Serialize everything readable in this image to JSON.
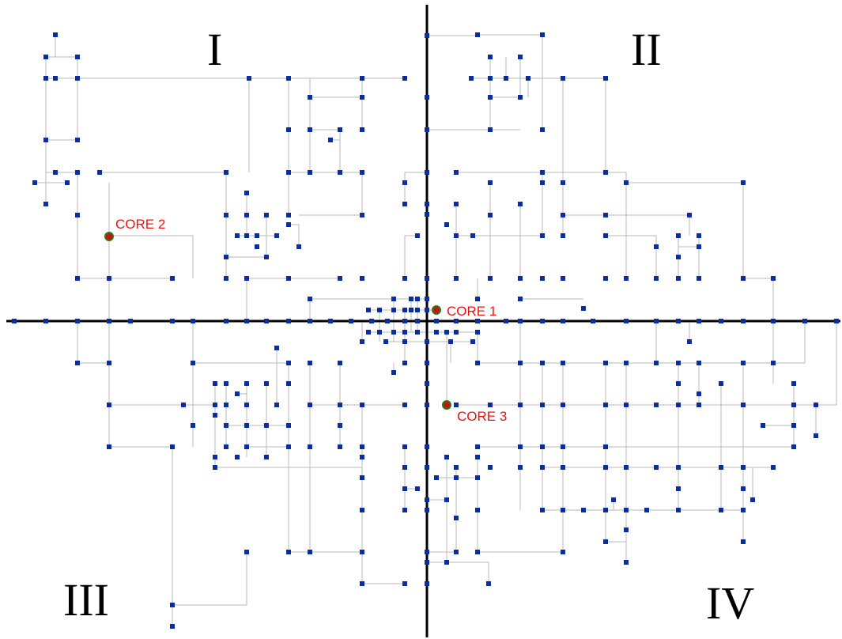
{
  "quadrants": [
    {
      "id": "q1",
      "label": "I"
    },
    {
      "id": "q2",
      "label": "II"
    },
    {
      "id": "q3",
      "label": "III"
    },
    {
      "id": "q4",
      "label": "IV"
    }
  ],
  "cores": [
    {
      "id": "core-1",
      "label": "CORE 1"
    },
    {
      "id": "core-2",
      "label": "CORE 2"
    },
    {
      "id": "core-3",
      "label": "CORE 3"
    }
  ],
  "colors": {
    "node": "#0a2ea0",
    "wire": "#b8b8b8",
    "axis": "#000000",
    "core_fill": "#cc1111",
    "core_ring": "#2a7a1a",
    "core_text": "#ee1111"
  }
}
